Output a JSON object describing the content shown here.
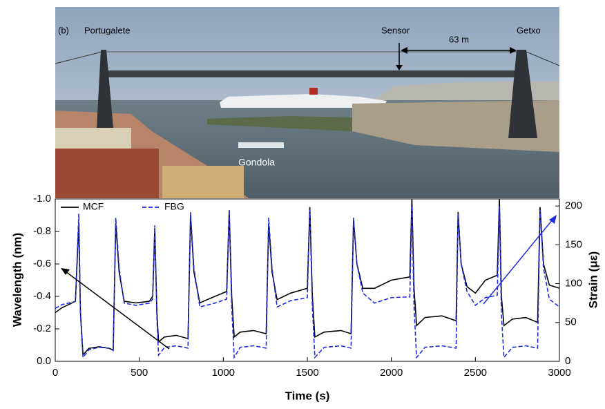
{
  "photo": {
    "panel_label": "(b)",
    "left_label": "Portugalete",
    "sensor_label": "Sensor",
    "distance_label": "63 m",
    "right_label": "Getxo",
    "gondola_label": "Gondola"
  },
  "chart_data": {
    "type": "line",
    "xlabel": "Time (s)",
    "ylabel": "Wavelength (nm)",
    "y2label": "Strain (με)",
    "xlim": [
      0,
      3000
    ],
    "xticks": [
      0,
      500,
      1000,
      1500,
      2000,
      2500,
      3000
    ],
    "ylim": [
      0,
      -1
    ],
    "yticks": [
      {
        "value": 0,
        "label": "0.0"
      },
      -0.2,
      -0.4,
      -0.6,
      -0.8,
      {
        "value": -1,
        "label": "-1.0"
      }
    ],
    "y2lim": [
      0,
      209
    ],
    "y2ticks": [
      0,
      50,
      100,
      150,
      200
    ],
    "grid": false,
    "legend": "upper left",
    "x": [
      0,
      40,
      80,
      120,
      140,
      150,
      165,
      200,
      260,
      320,
      345,
      360,
      380,
      410,
      480,
      560,
      580,
      592,
      605,
      615,
      650,
      720,
      790,
      805,
      825,
      860,
      950,
      1020,
      1035,
      1050,
      1065,
      1100,
      1180,
      1255,
      1270,
      1290,
      1320,
      1400,
      1500,
      1515,
      1530,
      1545,
      1600,
      1700,
      1760,
      1775,
      1795,
      1830,
      1900,
      2000,
      2110,
      2122,
      2135,
      2150,
      2200,
      2300,
      2385,
      2397,
      2415,
      2450,
      2500,
      2560,
      2630,
      2643,
      2655,
      2670,
      2720,
      2800,
      2870,
      2885,
      2905,
      2940,
      3000
    ],
    "series": [
      {
        "name": "MCF",
        "color": "#000000",
        "linestyle": "solid",
        "values": [
          -0.3,
          -0.33,
          -0.35,
          -0.37,
          -0.85,
          -0.3,
          -0.04,
          -0.08,
          -0.09,
          -0.08,
          -0.07,
          -0.85,
          -0.55,
          -0.37,
          -0.36,
          -0.37,
          -0.4,
          -0.82,
          -0.3,
          -0.12,
          -0.15,
          -0.16,
          -0.14,
          -0.9,
          -0.55,
          -0.36,
          -0.4,
          -0.43,
          -0.93,
          -0.4,
          -0.15,
          -0.18,
          -0.19,
          -0.17,
          -0.85,
          -0.55,
          -0.38,
          -0.42,
          -0.45,
          -0.95,
          -0.4,
          -0.15,
          -0.18,
          -0.19,
          -0.17,
          -0.87,
          -0.6,
          -0.45,
          -0.45,
          -0.5,
          -0.52,
          -1.0,
          -0.45,
          -0.22,
          -0.27,
          -0.28,
          -0.25,
          -0.92,
          -0.6,
          -0.46,
          -0.42,
          -0.5,
          -0.53,
          -1.0,
          -0.4,
          -0.22,
          -0.26,
          -0.27,
          -0.24,
          -0.95,
          -0.6,
          -0.47,
          -0.45
        ]
      },
      {
        "name": "FBG",
        "color": "#1f2de0",
        "linestyle": "dashed",
        "axis": "y2",
        "values": [
          68,
          73,
          75,
          77,
          190,
          60,
          5,
          15,
          18,
          17,
          14,
          185,
          120,
          75,
          72,
          75,
          80,
          175,
          55,
          8,
          18,
          20,
          17,
          192,
          120,
          70,
          75,
          80,
          195,
          70,
          5,
          18,
          20,
          17,
          185,
          120,
          70,
          78,
          82,
          195,
          70,
          5,
          18,
          20,
          17,
          185,
          125,
          88,
          75,
          82,
          83,
          200,
          70,
          5,
          18,
          20,
          17,
          190,
          125,
          90,
          72,
          82,
          85,
          200,
          60,
          5,
          18,
          20,
          17,
          195,
          120,
          80,
          70
        ]
      }
    ]
  }
}
